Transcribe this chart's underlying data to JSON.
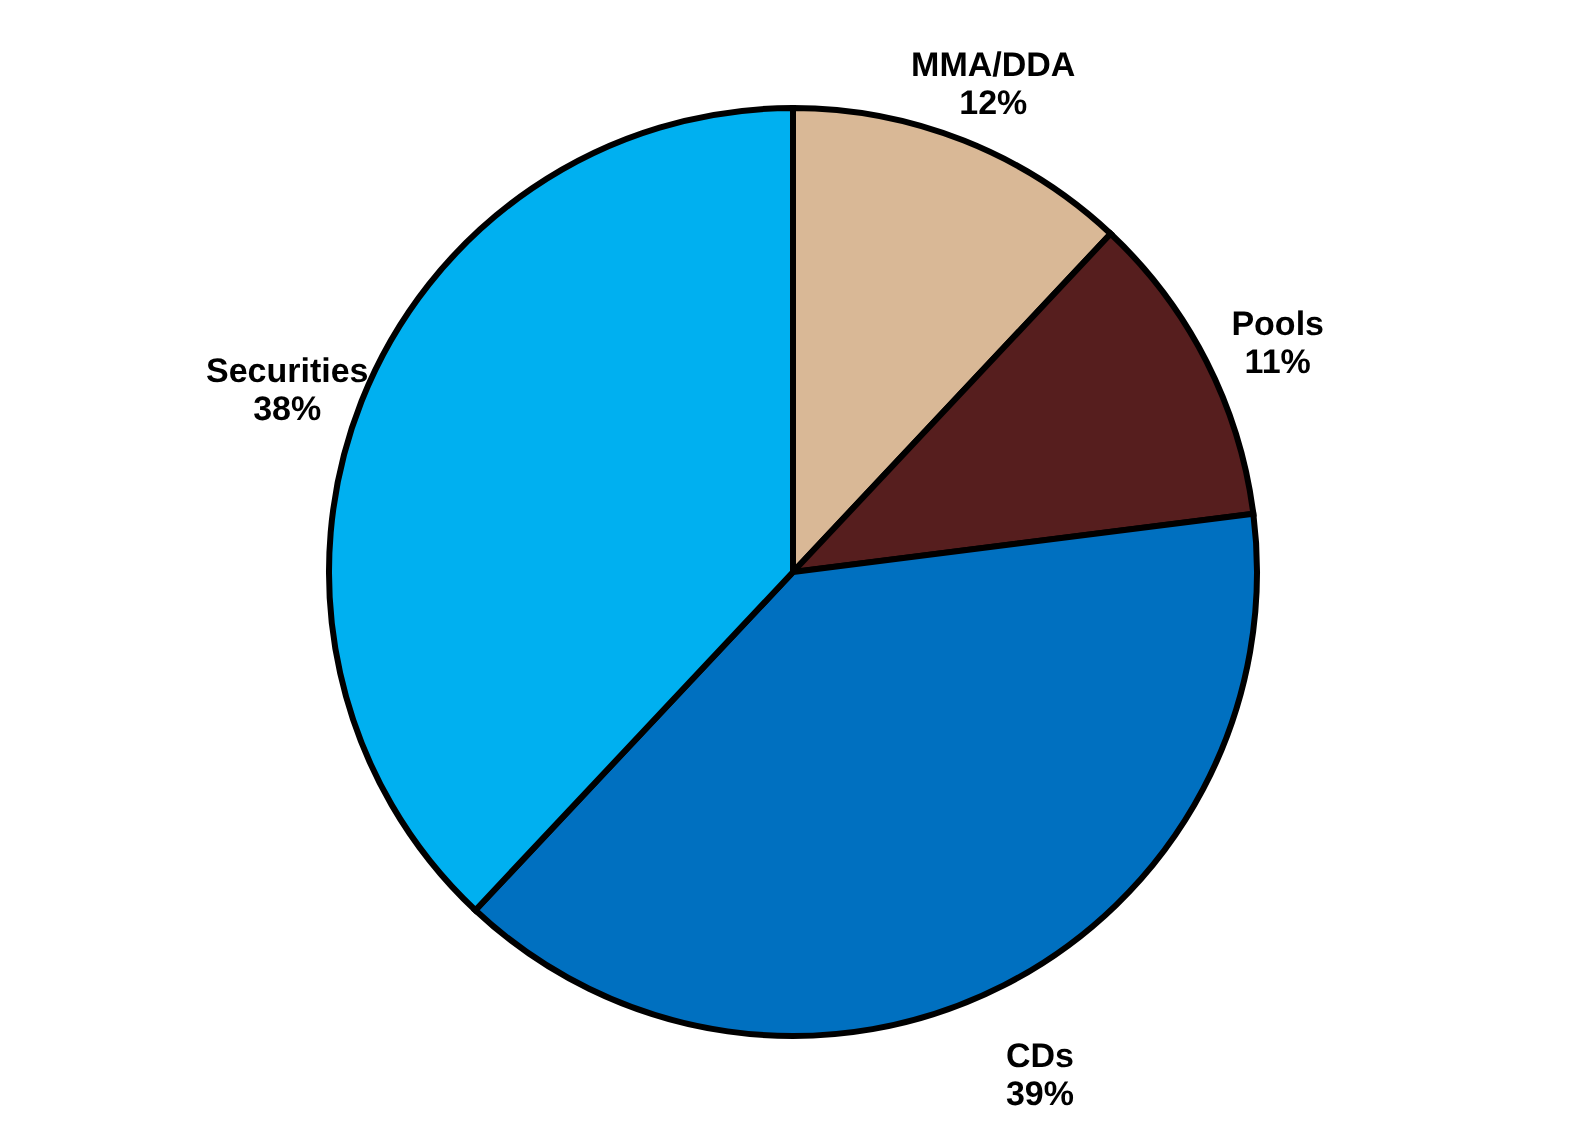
{
  "chart_data": {
    "type": "pie",
    "categories": [
      "MMA/DDA",
      "Pools",
      "CDs",
      "Securities"
    ],
    "values": [
      12,
      11,
      39,
      38
    ],
    "colors": [
      "#d9b896",
      "#561e1e",
      "#0070c0",
      "#00b0f0"
    ],
    "value_labels": [
      "12%",
      "11%",
      "39%",
      "38%"
    ]
  }
}
